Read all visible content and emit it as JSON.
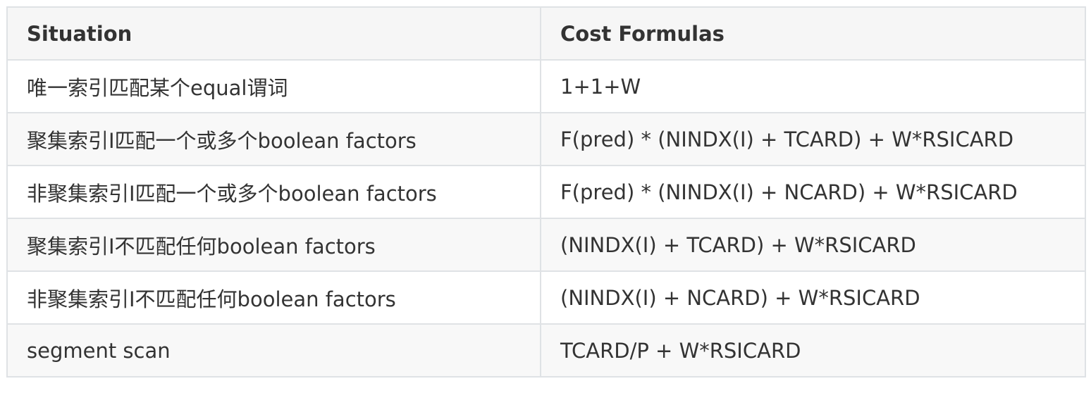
{
  "table": {
    "headers": [
      "Situation",
      "Cost Formulas"
    ],
    "rows": [
      [
        "唯一索引匹配某个equal谓词",
        "1+1+W"
      ],
      [
        "聚集索引I匹配一个或多个boolean factors",
        "F(pred) * (NINDX(I) + TCARD) + W*RSICARD"
      ],
      [
        "非聚集索引I匹配一个或多个boolean factors",
        "F(pred) * (NINDX(I) + NCARD) + W*RSICARD"
      ],
      [
        "聚集索引I不匹配任何boolean factors",
        "(NINDX(I) + TCARD) + W*RSICARD"
      ],
      [
        "非聚集索引I不匹配任何boolean factors",
        "(NINDX(I) + NCARD) + W*RSICARD"
      ],
      [
        "segment scan",
        "TCARD/P + W*RSICARD"
      ]
    ]
  },
  "colors": {
    "border": "#dfe2e5",
    "header_bg": "#f6f6f6",
    "stripe_bg": "#f8f8f8",
    "text": "#333333"
  }
}
